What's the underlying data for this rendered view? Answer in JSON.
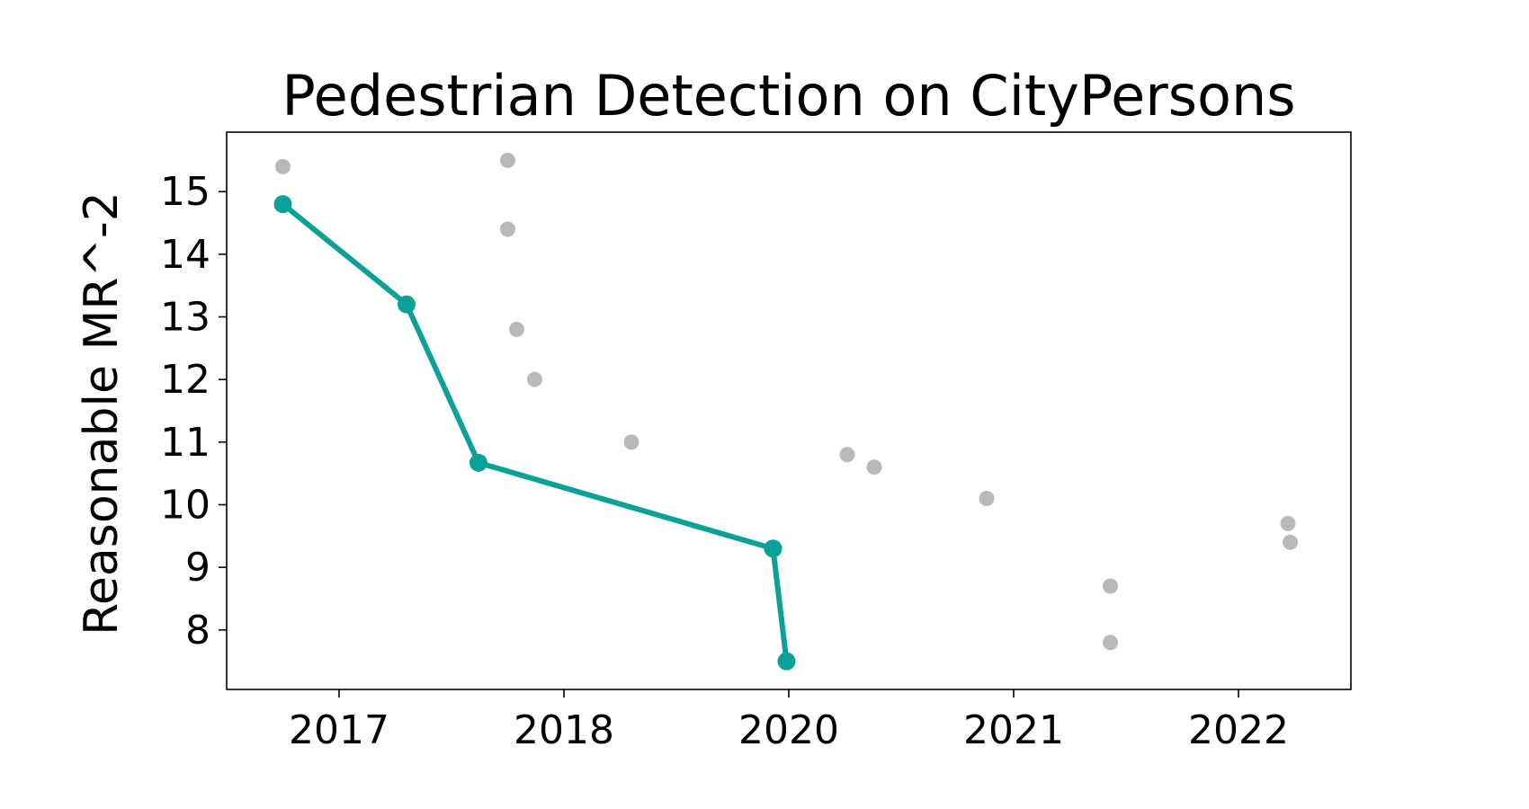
{
  "chart_data": {
    "type": "scatter",
    "title": "Pedestrian Detection on CityPersons",
    "xlabel": "",
    "ylabel": "Reasonable MR^-2",
    "x_ticks": [
      "2017",
      "2018",
      "2020",
      "2021",
      "2022"
    ],
    "y_ticks": [
      8,
      9,
      10,
      11,
      12,
      13,
      14,
      15
    ],
    "xlim_ticks": [
      -0.5,
      4.5
    ],
    "ylim": [
      7.05,
      15.95
    ],
    "grid": false,
    "colors": {
      "frontier": "#0ca197",
      "other": "#b9b9b9",
      "axes": "#000000"
    },
    "note_x_positions": "x values are positions on the tick-label axis: 0 = '2017', 1 = '2018', 2 = '2020', 3 = '2021', 4 = '2022'",
    "series": [
      {
        "style": "line-marker",
        "x": [
          -0.25,
          0.3,
          0.62,
          1.93,
          1.99
        ],
        "y": [
          14.8,
          13.2,
          10.67,
          9.3,
          7.5
        ]
      },
      {
        "style": "scatter",
        "x": [
          -0.25,
          0.75,
          0.75,
          0.79,
          0.87,
          1.3,
          2.26,
          2.38,
          2.88,
          3.43,
          3.43,
          4.22,
          4.23
        ],
        "y": [
          15.4,
          15.5,
          14.4,
          12.8,
          12.0,
          11.0,
          10.8,
          10.6,
          10.1,
          8.7,
          7.8,
          9.7,
          9.4
        ]
      }
    ]
  }
}
